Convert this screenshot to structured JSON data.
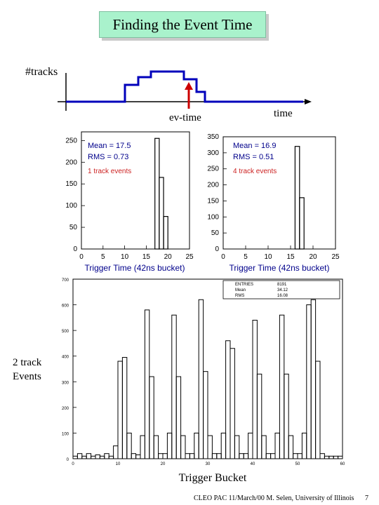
{
  "slide": {
    "title": "Finding the Event Time",
    "footer": "CLEO PAC 11/March/00 M. Selen, University of Illinois",
    "page_number": "7",
    "colors": {
      "title_bg": "#a9f2cc",
      "schematic_line": "#0000bb",
      "marker": "#cc0000",
      "stats_text": "#00008b",
      "stats_red": "#cc2222"
    }
  },
  "schematic": {
    "ylabel": "#tracks",
    "xlabel": "time",
    "marker_label": "ev-time"
  },
  "chart_data": [
    {
      "type": "bar",
      "xlabel": "Trigger Time (42ns bucket)",
      "xlim": [
        0,
        25
      ],
      "ylim": [
        0,
        270
      ],
      "xticks": [
        0,
        5,
        10,
        15,
        20,
        25
      ],
      "yticks": [
        0,
        50,
        100,
        150,
        200,
        250
      ],
      "stats": {
        "mean": "Mean = 17.5",
        "rms": "RMS = 0.73",
        "label": "1 track events"
      },
      "bins": [
        16,
        17,
        18,
        19
      ],
      "values": [
        0,
        255,
        165,
        75
      ]
    },
    {
      "type": "bar",
      "xlabel": "Trigger Time (42ns bucket)",
      "xlim": [
        0,
        25
      ],
      "ylim": [
        0,
        350
      ],
      "xticks": [
        0,
        5,
        10,
        15,
        20,
        25
      ],
      "yticks": [
        0,
        50,
        100,
        150,
        200,
        250,
        300,
        350
      ],
      "stats": {
        "mean": "Mean = 16.9",
        "rms": "RMS = 0.51",
        "label": "4 track events"
      },
      "bins": [
        15,
        16,
        17,
        18
      ],
      "values": [
        0,
        320,
        160,
        0
      ]
    },
    {
      "type": "bar",
      "ylabel": "2 track Events",
      "xlabel": "Trigger Bucket",
      "xlim": [
        0,
        60
      ],
      "ylim": [
        0,
        700
      ],
      "xticks": [
        0,
        10,
        20,
        30,
        40,
        50,
        60
      ],
      "yticks": [
        0,
        100,
        200,
        300,
        400,
        500,
        600,
        700
      ],
      "stats": {
        "entries": [
          "ENTRIES",
          "8191"
        ],
        "mean": [
          "Mean",
          "34.12"
        ],
        "rms": [
          "RMS",
          "16.08"
        ]
      },
      "bins": [
        0,
        1,
        2,
        3,
        4,
        5,
        6,
        7,
        8,
        9,
        10,
        11,
        12,
        13,
        14,
        15,
        16,
        17,
        18,
        19,
        20,
        21,
        22,
        23,
        24,
        25,
        26,
        27,
        28,
        29,
        30,
        31,
        32,
        33,
        34,
        35,
        36,
        37,
        38,
        39,
        40,
        41,
        42,
        43,
        44,
        45,
        46,
        47,
        48,
        49,
        50,
        51,
        52,
        53,
        54,
        55,
        56,
        57,
        58,
        59
      ],
      "values": [
        10,
        20,
        10,
        20,
        10,
        15,
        10,
        20,
        10,
        50,
        380,
        395,
        100,
        20,
        15,
        90,
        580,
        320,
        90,
        20,
        20,
        100,
        560,
        320,
        90,
        20,
        20,
        100,
        620,
        340,
        90,
        20,
        20,
        100,
        460,
        430,
        90,
        20,
        20,
        100,
        540,
        330,
        90,
        20,
        20,
        100,
        560,
        330,
        90,
        20,
        20,
        100,
        600,
        620,
        380,
        20,
        10,
        10,
        10,
        10
      ]
    }
  ]
}
